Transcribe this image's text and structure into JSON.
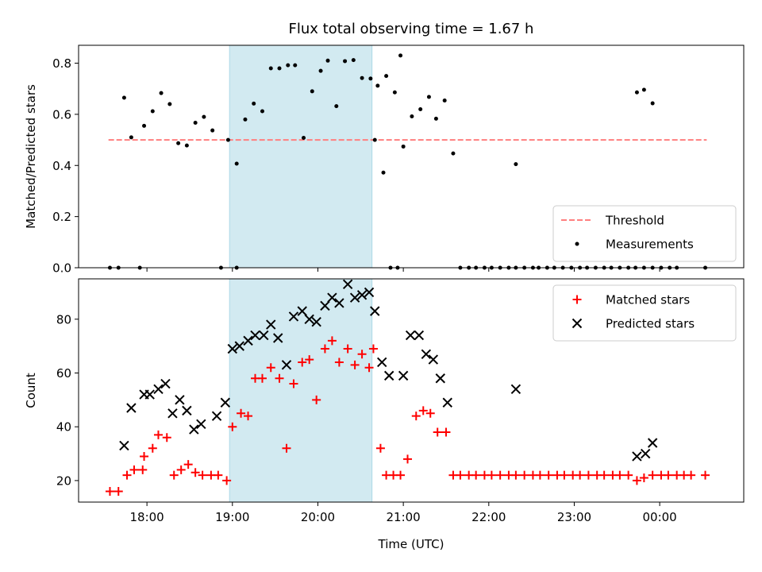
{
  "chart_data": [
    {
      "type": "scatter",
      "title": "Flux total observing time = 1.67 h",
      "xlabel": "",
      "ylabel": "Matched/Predicted stars",
      "ylim": [
        0,
        0.87
      ],
      "xlim": [
        "17:12",
        "00:59"
      ],
      "yticks": [
        "0.0",
        "0.2",
        "0.4",
        "0.6",
        "0.8"
      ],
      "legend": {
        "placement": "lower-right",
        "entries": [
          "Threshold",
          "Measurements"
        ]
      },
      "shaded_interval": {
        "start": "18:58",
        "end": "20:38",
        "color": "#add8e6"
      },
      "threshold": {
        "name": "Threshold",
        "value": 0.5,
        "x_start": "17:33",
        "x_end": "00:33",
        "color": "#ff7f7f",
        "style": "dashed"
      },
      "series": [
        {
          "name": "Measurements",
          "color": "#000000",
          "points": [
            [
              "17:34",
              0.0
            ],
            [
              "17:40",
              0.0
            ],
            [
              "17:44",
              0.665
            ],
            [
              "17:49",
              0.51
            ],
            [
              "17:55",
              0.0
            ],
            [
              "17:58",
              0.555
            ],
            [
              "18:04",
              0.612
            ],
            [
              "18:10",
              0.683
            ],
            [
              "18:16",
              0.64
            ],
            [
              "18:22",
              0.487
            ],
            [
              "18:28",
              0.478
            ],
            [
              "18:34",
              0.567
            ],
            [
              "18:40",
              0.59
            ],
            [
              "18:46",
              0.537
            ],
            [
              "18:52",
              0.0
            ],
            [
              "18:57",
              0.5
            ],
            [
              "19:03",
              0.407
            ],
            [
              "19:09",
              0.58
            ],
            [
              "19:15",
              0.642
            ],
            [
              "19:21",
              0.612
            ],
            [
              "19:27",
              0.78
            ],
            [
              "19:33",
              0.78
            ],
            [
              "19:39",
              0.792
            ],
            [
              "19:44",
              0.792
            ],
            [
              "19:50",
              0.508
            ],
            [
              "19:56",
              0.69
            ],
            [
              "20:02",
              0.77
            ],
            [
              "20:07",
              0.81
            ],
            [
              "20:13",
              0.632
            ],
            [
              "20:19",
              0.808
            ],
            [
              "20:25",
              0.812
            ],
            [
              "20:31",
              0.742
            ],
            [
              "20:37",
              0.74
            ],
            [
              "20:42",
              0.712
            ],
            [
              "20:48",
              0.75
            ],
            [
              "20:54",
              0.686
            ],
            [
              "20:58",
              0.83
            ],
            [
              "19:03",
              0.0
            ],
            [
              "20:40",
              0.5
            ],
            [
              "20:46",
              0.372
            ],
            [
              "20:51",
              0.0
            ],
            [
              "20:56",
              0.0
            ],
            [
              "21:00",
              0.474
            ],
            [
              "21:06",
              0.592
            ],
            [
              "21:12",
              0.62
            ],
            [
              "21:18",
              0.668
            ],
            [
              "21:23",
              0.583
            ],
            [
              "21:29",
              0.654
            ],
            [
              "21:35",
              0.447
            ],
            [
              "21:40",
              0.0
            ],
            [
              "21:46",
              0.0
            ],
            [
              "21:51",
              0.0
            ],
            [
              "21:57",
              0.0
            ],
            [
              "22:02",
              0.0
            ],
            [
              "22:08",
              0.0
            ],
            [
              "22:14",
              0.0
            ],
            [
              "22:19",
              0.0
            ],
            [
              "22:25",
              0.0
            ],
            [
              "22:31",
              0.0
            ],
            [
              "22:19",
              0.405
            ],
            [
              "22:35",
              0.0
            ],
            [
              "22:41",
              0.0
            ],
            [
              "22:46",
              0.0
            ],
            [
              "22:52",
              0.0
            ],
            [
              "22:58",
              0.0
            ],
            [
              "23:04",
              0.0
            ],
            [
              "23:09",
              0.0
            ],
            [
              "23:15",
              0.0
            ],
            [
              "23:21",
              0.0
            ],
            [
              "23:26",
              0.0
            ],
            [
              "23:32",
              0.0
            ],
            [
              "23:38",
              0.0
            ],
            [
              "23:43",
              0.0
            ],
            [
              "23:49",
              0.0
            ],
            [
              "23:55",
              0.0
            ],
            [
              "00:01",
              0.0
            ],
            [
              "00:07",
              0.0
            ],
            [
              "00:12",
              0.0
            ],
            [
              "00:32",
              0.0
            ],
            [
              "23:44",
              0.686
            ],
            [
              "23:49",
              0.696
            ],
            [
              "23:55",
              0.643
            ]
          ]
        }
      ]
    },
    {
      "type": "scatter",
      "title": "",
      "xlabel": "Time (UTC)",
      "ylabel": "Count",
      "ylim": [
        12,
        95
      ],
      "xlim": [
        "17:12",
        "00:59"
      ],
      "yticks": [
        "20",
        "40",
        "60",
        "80"
      ],
      "xticks": [
        "18:00",
        "19:00",
        "20:00",
        "21:00",
        "22:00",
        "23:00",
        "00:00"
      ],
      "legend": {
        "placement": "top-right",
        "entries": [
          "Matched stars",
          "Predicted stars"
        ]
      },
      "shaded_interval": {
        "start": "18:58",
        "end": "20:38",
        "color": "#add8e6"
      },
      "series": [
        {
          "name": "Matched stars",
          "color": "#ff0000",
          "marker": "+",
          "points": [
            [
              "17:34",
              16
            ],
            [
              "17:40",
              16
            ],
            [
              "17:46",
              22
            ],
            [
              "17:51",
              24
            ],
            [
              "17:57",
              24
            ],
            [
              "17:58",
              29
            ],
            [
              "18:04",
              32
            ],
            [
              "18:08",
              37
            ],
            [
              "18:14",
              36
            ],
            [
              "18:19",
              22
            ],
            [
              "18:24",
              24
            ],
            [
              "18:29",
              26
            ],
            [
              "18:34",
              23
            ],
            [
              "18:39",
              22
            ],
            [
              "18:45",
              22
            ],
            [
              "18:50",
              22
            ],
            [
              "18:56",
              20
            ],
            [
              "19:00",
              40
            ],
            [
              "19:06",
              45
            ],
            [
              "19:11",
              44
            ],
            [
              "19:16",
              58
            ],
            [
              "19:21",
              58
            ],
            [
              "19:27",
              62
            ],
            [
              "19:33",
              58
            ],
            [
              "19:38",
              32
            ],
            [
              "19:43",
              56
            ],
            [
              "19:49",
              64
            ],
            [
              "19:54",
              65
            ],
            [
              "19:59",
              50
            ],
            [
              "20:05",
              69
            ],
            [
              "20:10",
              72
            ],
            [
              "20:15",
              64
            ],
            [
              "20:21",
              69
            ],
            [
              "20:26",
              63
            ],
            [
              "20:31",
              67
            ],
            [
              "20:36",
              62
            ],
            [
              "20:39",
              69
            ],
            [
              "20:44",
              32
            ],
            [
              "20:48",
              22
            ],
            [
              "20:53",
              22
            ],
            [
              "20:58",
              22
            ],
            [
              "21:03",
              28
            ],
            [
              "21:09",
              44
            ],
            [
              "21:14",
              46
            ],
            [
              "21:19",
              45
            ],
            [
              "21:24",
              38
            ],
            [
              "21:30",
              38
            ],
            [
              "21:35",
              22
            ],
            [
              "21:40",
              22
            ],
            [
              "21:46",
              22
            ],
            [
              "21:51",
              22
            ],
            [
              "21:57",
              22
            ],
            [
              "22:02",
              22
            ],
            [
              "22:08",
              22
            ],
            [
              "22:14",
              22
            ],
            [
              "22:19",
              22
            ],
            [
              "22:25",
              22
            ],
            [
              "22:31",
              22
            ],
            [
              "22:36",
              22
            ],
            [
              "22:42",
              22
            ],
            [
              "22:48",
              22
            ],
            [
              "22:53",
              22
            ],
            [
              "22:59",
              22
            ],
            [
              "23:04",
              22
            ],
            [
              "23:10",
              22
            ],
            [
              "23:16",
              22
            ],
            [
              "23:21",
              22
            ],
            [
              "23:27",
              22
            ],
            [
              "23:32",
              22
            ],
            [
              "23:38",
              22
            ],
            [
              "23:44",
              20
            ],
            [
              "23:49",
              21
            ],
            [
              "23:55",
              22
            ],
            [
              "00:01",
              22
            ],
            [
              "00:06",
              22
            ],
            [
              "00:12",
              22
            ],
            [
              "00:17",
              22
            ],
            [
              "00:22",
              22
            ],
            [
              "00:32",
              22
            ]
          ]
        },
        {
          "name": "Predicted stars",
          "color": "#000000",
          "marker": "x",
          "points": [
            [
              "17:44",
              33
            ],
            [
              "17:49",
              47
            ],
            [
              "17:58",
              52
            ],
            [
              "18:02",
              52
            ],
            [
              "18:08",
              54
            ],
            [
              "18:13",
              56
            ],
            [
              "18:18",
              45
            ],
            [
              "18:23",
              50
            ],
            [
              "18:28",
              46
            ],
            [
              "18:33",
              39
            ],
            [
              "18:38",
              41
            ],
            [
              "18:49",
              44
            ],
            [
              "18:55",
              49
            ],
            [
              "19:00",
              69
            ],
            [
              "19:05",
              70
            ],
            [
              "19:11",
              72
            ],
            [
              "19:16",
              74
            ],
            [
              "19:22",
              74
            ],
            [
              "19:27",
              78
            ],
            [
              "19:32",
              73
            ],
            [
              "19:38",
              63
            ],
            [
              "19:43",
              81
            ],
            [
              "19:49",
              83
            ],
            [
              "19:54",
              80
            ],
            [
              "19:59",
              79
            ],
            [
              "20:05",
              85
            ],
            [
              "20:10",
              88
            ],
            [
              "20:15",
              86
            ],
            [
              "20:21",
              93
            ],
            [
              "20:26",
              88
            ],
            [
              "20:31",
              89
            ],
            [
              "20:36",
              90
            ],
            [
              "20:40",
              83
            ],
            [
              "20:45",
              64
            ],
            [
              "20:50",
              59
            ],
            [
              "21:00",
              59
            ],
            [
              "21:05",
              74
            ],
            [
              "21:11",
              74
            ],
            [
              "21:16",
              67
            ],
            [
              "21:21",
              65
            ],
            [
              "21:26",
              58
            ],
            [
              "21:31",
              49
            ],
            [
              "22:19",
              54
            ],
            [
              "23:44",
              29
            ],
            [
              "23:50",
              30
            ],
            [
              "23:55",
              34
            ]
          ]
        }
      ]
    }
  ]
}
